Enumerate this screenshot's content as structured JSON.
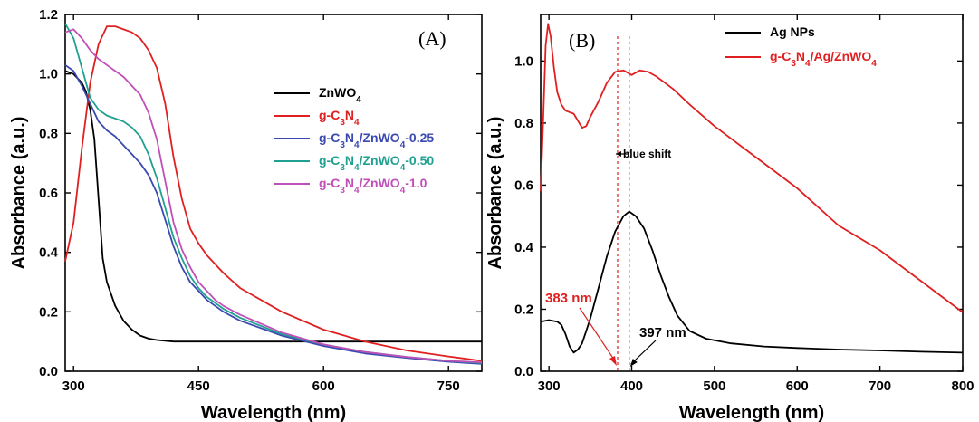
{
  "chart_data": [
    {
      "type": "line",
      "panel_label": "(A)",
      "xlabel": "Wavelength (nm)",
      "ylabel": "Absorbance (a.u.)",
      "xlim": [
        290,
        790
      ],
      "ylim": [
        0,
        1.2
      ],
      "xticks": [
        300,
        450,
        600,
        750
      ],
      "yticks": [
        0.0,
        0.2,
        0.4,
        0.6,
        0.8,
        1.0,
        1.2
      ],
      "grid": false,
      "legend_placement": "center-right",
      "series": [
        {
          "name": "ZnWO4",
          "legend_label": [
            "ZnWO",
            "4",
            ""
          ],
          "color": "#000000",
          "x": [
            290,
            300,
            310,
            315,
            320,
            325,
            330,
            335,
            340,
            345,
            350,
            360,
            370,
            380,
            390,
            400,
            420,
            450,
            500,
            600,
            700,
            790
          ],
          "y": [
            1.01,
            1.0,
            0.97,
            0.94,
            0.88,
            0.78,
            0.58,
            0.38,
            0.3,
            0.26,
            0.22,
            0.17,
            0.14,
            0.12,
            0.11,
            0.105,
            0.1,
            0.1,
            0.1,
            0.1,
            0.1,
            0.1
          ]
        },
        {
          "name": "g-C3N4",
          "legend_label": [
            "g-C",
            "3",
            "N",
            "4",
            ""
          ],
          "color": "#e02020",
          "x": [
            290,
            300,
            310,
            320,
            330,
            340,
            350,
            360,
            370,
            380,
            390,
            400,
            410,
            420,
            430,
            440,
            450,
            460,
            470,
            480,
            500,
            550,
            600,
            650,
            700,
            750,
            790
          ],
          "y": [
            0.37,
            0.5,
            0.75,
            0.97,
            1.1,
            1.16,
            1.16,
            1.15,
            1.14,
            1.12,
            1.08,
            1.02,
            0.9,
            0.72,
            0.58,
            0.48,
            0.43,
            0.39,
            0.36,
            0.33,
            0.28,
            0.2,
            0.14,
            0.1,
            0.07,
            0.05,
            0.035
          ]
        },
        {
          "name": "g-C3N4/ZnWO4-0.25",
          "legend_label": [
            "g-C",
            "3",
            "N",
            "4",
            "/ZnWO",
            "4",
            "-0.25"
          ],
          "color": "#3a4ab0",
          "x": [
            290,
            300,
            310,
            320,
            330,
            340,
            350,
            360,
            370,
            380,
            390,
            400,
            410,
            420,
            430,
            440,
            450,
            460,
            470,
            480,
            500,
            550,
            600,
            650,
            700,
            750,
            790
          ],
          "y": [
            1.03,
            1.01,
            0.96,
            0.9,
            0.84,
            0.81,
            0.79,
            0.76,
            0.73,
            0.7,
            0.66,
            0.6,
            0.51,
            0.42,
            0.35,
            0.3,
            0.27,
            0.24,
            0.22,
            0.2,
            0.17,
            0.12,
            0.085,
            0.06,
            0.045,
            0.032,
            0.025
          ]
        },
        {
          "name": "g-C3N4/ZnWO4-0.50",
          "legend_label": [
            "g-C",
            "3",
            "N",
            "4",
            "/ZnWO",
            "4",
            "-0.50"
          ],
          "color": "#20a090",
          "x": [
            290,
            300,
            310,
            320,
            330,
            340,
            350,
            360,
            370,
            380,
            390,
            400,
            410,
            420,
            430,
            440,
            450,
            460,
            470,
            480,
            500,
            550,
            600,
            650,
            700,
            750,
            790
          ],
          "y": [
            1.17,
            1.12,
            1.02,
            0.92,
            0.88,
            0.86,
            0.85,
            0.84,
            0.82,
            0.79,
            0.73,
            0.65,
            0.55,
            0.45,
            0.38,
            0.32,
            0.28,
            0.25,
            0.23,
            0.21,
            0.18,
            0.125,
            0.09,
            0.065,
            0.048,
            0.035,
            0.028
          ]
        },
        {
          "name": "g-C3N4/ZnWO4-1.0",
          "legend_label": [
            "g-C",
            "3",
            "N",
            "4",
            "/ZnWO",
            "4",
            "-1.0"
          ],
          "color": "#c050b8",
          "x": [
            290,
            300,
            310,
            320,
            330,
            340,
            350,
            360,
            370,
            380,
            390,
            400,
            410,
            420,
            430,
            440,
            450,
            460,
            470,
            480,
            500,
            550,
            600,
            650,
            700,
            750,
            790
          ],
          "y": [
            1.14,
            1.15,
            1.12,
            1.08,
            1.05,
            1.03,
            1.01,
            0.99,
            0.96,
            0.93,
            0.87,
            0.78,
            0.64,
            0.5,
            0.41,
            0.35,
            0.3,
            0.27,
            0.24,
            0.22,
            0.19,
            0.13,
            0.09,
            0.065,
            0.048,
            0.035,
            0.03
          ]
        }
      ]
    },
    {
      "type": "line",
      "panel_label": "(B)",
      "xlabel": "Wavelength (nm)",
      "ylabel": "Absorbance (a.u.)",
      "xlim": [
        290,
        800
      ],
      "ylim": [
        0,
        1.15
      ],
      "xticks": [
        300,
        400,
        500,
        600,
        700,
        800
      ],
      "yticks": [
        0.0,
        0.2,
        0.4,
        0.6,
        0.8,
        1.0
      ],
      "grid": false,
      "legend_placement": "top-right",
      "series": [
        {
          "name": "Ag NPs",
          "legend_label": [
            "Ag NPs"
          ],
          "color": "#000000",
          "x": [
            290,
            300,
            310,
            315,
            320,
            325,
            330,
            335,
            340,
            345,
            350,
            360,
            370,
            380,
            390,
            397,
            405,
            415,
            425,
            435,
            445,
            455,
            470,
            490,
            520,
            560,
            600,
            650,
            700,
            750,
            800
          ],
          "y": [
            0.16,
            0.165,
            0.16,
            0.15,
            0.12,
            0.08,
            0.06,
            0.07,
            0.09,
            0.13,
            0.17,
            0.27,
            0.37,
            0.45,
            0.5,
            0.515,
            0.5,
            0.46,
            0.39,
            0.31,
            0.24,
            0.18,
            0.13,
            0.105,
            0.09,
            0.08,
            0.075,
            0.07,
            0.067,
            0.063,
            0.06
          ]
        },
        {
          "name": "g-C3N4/Ag/ZnWO4",
          "legend_label": [
            "g-C",
            "3",
            "N",
            "4",
            "/Ag/ZnWO",
            "4",
            ""
          ],
          "color": "#e02020",
          "x": [
            290,
            293,
            296,
            299,
            302,
            306,
            310,
            315,
            320,
            330,
            340,
            345,
            350,
            360,
            370,
            380,
            390,
            400,
            410,
            420,
            430,
            450,
            470,
            500,
            550,
            600,
            650,
            700,
            750,
            800
          ],
          "y": [
            0.58,
            0.8,
            1.05,
            1.12,
            1.08,
            0.98,
            0.9,
            0.86,
            0.84,
            0.83,
            0.785,
            0.79,
            0.82,
            0.87,
            0.93,
            0.965,
            0.97,
            0.955,
            0.97,
            0.965,
            0.95,
            0.91,
            0.86,
            0.79,
            0.69,
            0.59,
            0.47,
            0.39,
            0.29,
            0.19
          ]
        }
      ],
      "annotations": {
        "blue_shift": "blue shift",
        "peak_red": "383 nm",
        "peak_black": "397 nm",
        "vline_red_x": 383,
        "vline_black_x": 397
      }
    }
  ]
}
